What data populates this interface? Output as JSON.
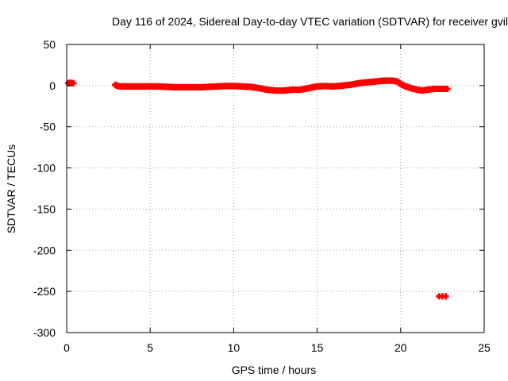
{
  "chart_data": {
    "type": "scatter",
    "title": "Day 116 of 2024, Sidereal Day-to-day VTEC variation (SDTVAR) for receiver gvil",
    "xlabel": "GPS time / hours",
    "ylabel": "SDTVAR / TECUs",
    "xlim": [
      0,
      25
    ],
    "ylim": [
      -300,
      50
    ],
    "xticks": [
      0,
      5,
      10,
      15,
      20,
      25
    ],
    "yticks": [
      50,
      0,
      -50,
      -100,
      -150,
      -200,
      -250,
      -300
    ],
    "grid": true,
    "legend": "none",
    "series": [
      {
        "color": "#ff0000",
        "marker": "+",
        "points": [
          [
            0.1,
            3
          ],
          [
            0.2,
            3.5
          ],
          [
            0.3,
            3
          ],
          [
            0.4,
            3
          ],
          [
            2.9,
            1
          ],
          [
            3.0,
            0
          ],
          [
            3.2,
            -1
          ],
          [
            3.5,
            -1
          ],
          [
            3.8,
            -1
          ],
          [
            4.0,
            -1
          ],
          [
            4.5,
            -1
          ],
          [
            5.0,
            -1
          ],
          [
            5.5,
            -1
          ],
          [
            6.0,
            -1.5
          ],
          [
            6.5,
            -2
          ],
          [
            7.0,
            -2
          ],
          [
            7.5,
            -2
          ],
          [
            8.0,
            -2
          ],
          [
            8.5,
            -1.5
          ],
          [
            9.0,
            -1
          ],
          [
            9.5,
            -0.5
          ],
          [
            10.0,
            -0.5
          ],
          [
            10.5,
            -1
          ],
          [
            11.0,
            -1.5
          ],
          [
            11.5,
            -3
          ],
          [
            12.0,
            -5
          ],
          [
            12.5,
            -6
          ],
          [
            13.0,
            -6
          ],
          [
            13.5,
            -5
          ],
          [
            14.0,
            -5
          ],
          [
            14.5,
            -3
          ],
          [
            15.0,
            -1
          ],
          [
            15.5,
            -0.5
          ],
          [
            16.0,
            -1
          ],
          [
            16.5,
            0
          ],
          [
            17.0,
            1
          ],
          [
            17.5,
            3
          ],
          [
            18.0,
            4
          ],
          [
            18.5,
            5
          ],
          [
            19.0,
            6
          ],
          [
            19.5,
            6
          ],
          [
            19.8,
            5
          ],
          [
            20.0,
            2
          ],
          [
            20.3,
            -1
          ],
          [
            20.6,
            -3
          ],
          [
            21.0,
            -5
          ],
          [
            21.3,
            -6
          ],
          [
            21.6,
            -5
          ],
          [
            22.0,
            -4
          ],
          [
            22.3,
            -4
          ],
          [
            22.6,
            -4
          ],
          [
            22.8,
            -4
          ],
          [
            22.3,
            -256
          ],
          [
            22.5,
            -256
          ],
          [
            22.7,
            -256
          ]
        ]
      }
    ]
  }
}
